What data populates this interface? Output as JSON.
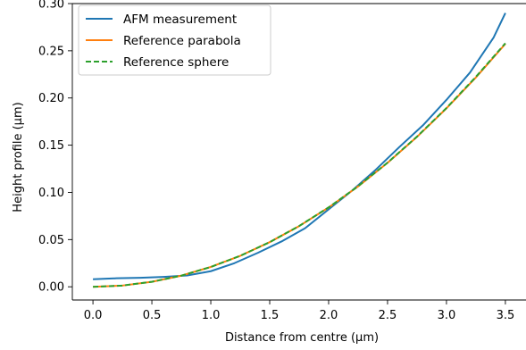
{
  "chart_data": {
    "type": "line",
    "title": "",
    "xlabel": "Distance from centre (μm)",
    "ylabel": "Height profile (μm)",
    "xlim": [
      -0.175,
      3.675
    ],
    "ylim": [
      -0.014,
      0.3
    ],
    "xticks": [
      0.0,
      0.5,
      1.0,
      1.5,
      2.0,
      2.5,
      3.0,
      3.5
    ],
    "xtick_labels": [
      "0.0",
      "0.5",
      "1.0",
      "1.5",
      "2.0",
      "2.5",
      "3.0",
      "3.5"
    ],
    "yticks": [
      0.0,
      0.05,
      0.1,
      0.15,
      0.2,
      0.25,
      0.3
    ],
    "ytick_labels": [
      "0.00",
      "0.05",
      "0.10",
      "0.15",
      "0.20",
      "0.25",
      "0.30"
    ],
    "grid": false,
    "legend_position": "top-left",
    "series": [
      {
        "name": "AFM measurement",
        "color": "#1f77b4",
        "style": "solid",
        "x": [
          0.0,
          0.2,
          0.4,
          0.6,
          0.8,
          1.0,
          1.2,
          1.4,
          1.6,
          1.8,
          2.0,
          2.2,
          2.4,
          2.6,
          2.8,
          3.0,
          3.2,
          3.4,
          3.5
        ],
        "y": [
          0.008,
          0.009,
          0.0095,
          0.0105,
          0.012,
          0.0165,
          0.025,
          0.036,
          0.048,
          0.062,
          0.082,
          0.102,
          0.124,
          0.148,
          0.171,
          0.198,
          0.227,
          0.264,
          0.29
        ]
      },
      {
        "name": "Reference parabola",
        "color": "#ff7f0e",
        "style": "solid",
        "x": [
          0.0,
          0.25,
          0.5,
          0.75,
          1.0,
          1.25,
          1.5,
          1.75,
          2.0,
          2.25,
          2.5,
          2.75,
          3.0,
          3.25,
          3.5
        ],
        "y": [
          0.0,
          0.0013,
          0.0053,
          0.0118,
          0.021,
          0.0328,
          0.0473,
          0.0643,
          0.084,
          0.1063,
          0.1313,
          0.1588,
          0.189,
          0.2218,
          0.2573
        ]
      },
      {
        "name": "Reference sphere",
        "color": "#2ca02c",
        "style": "dashed",
        "x": [
          0.0,
          0.25,
          0.5,
          0.75,
          1.0,
          1.25,
          1.5,
          1.75,
          2.0,
          2.25,
          2.5,
          2.75,
          3.0,
          3.25,
          3.5
        ],
        "y": [
          0.0,
          0.0013,
          0.0053,
          0.0118,
          0.021,
          0.0328,
          0.0473,
          0.0644,
          0.0841,
          0.1065,
          0.1315,
          0.1591,
          0.1894,
          0.2224,
          0.258
        ]
      }
    ]
  }
}
